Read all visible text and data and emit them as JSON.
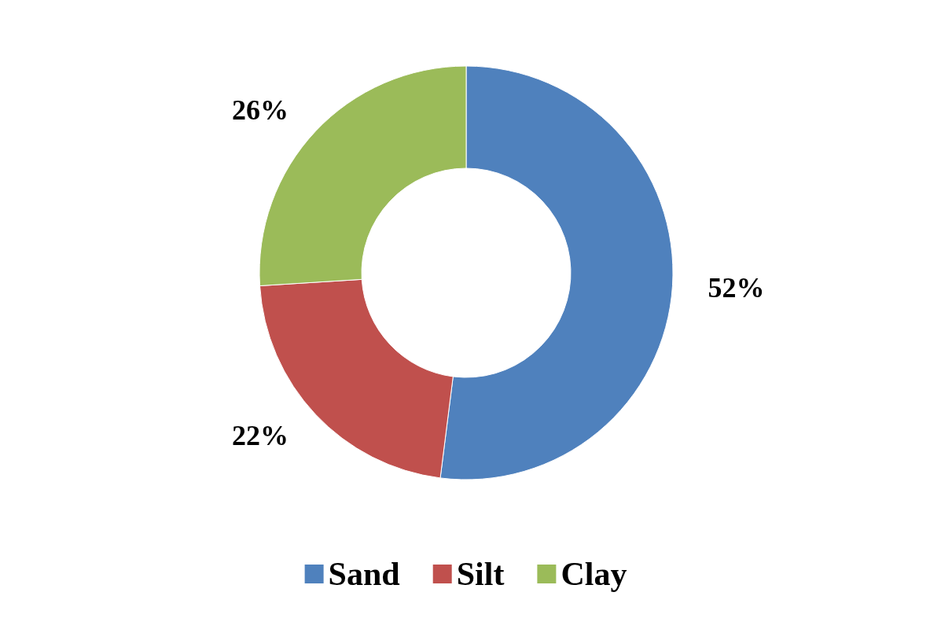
{
  "chart_data": {
    "type": "donut",
    "categories": [
      "Sand",
      "Silt",
      "Clay"
    ],
    "values": [
      52,
      22,
      26
    ],
    "colors": [
      "#4f81bd",
      "#c0504d",
      "#9bbb59"
    ],
    "value_labels": [
      "52%",
      "22%",
      "26%"
    ],
    "legend": "bottom"
  }
}
